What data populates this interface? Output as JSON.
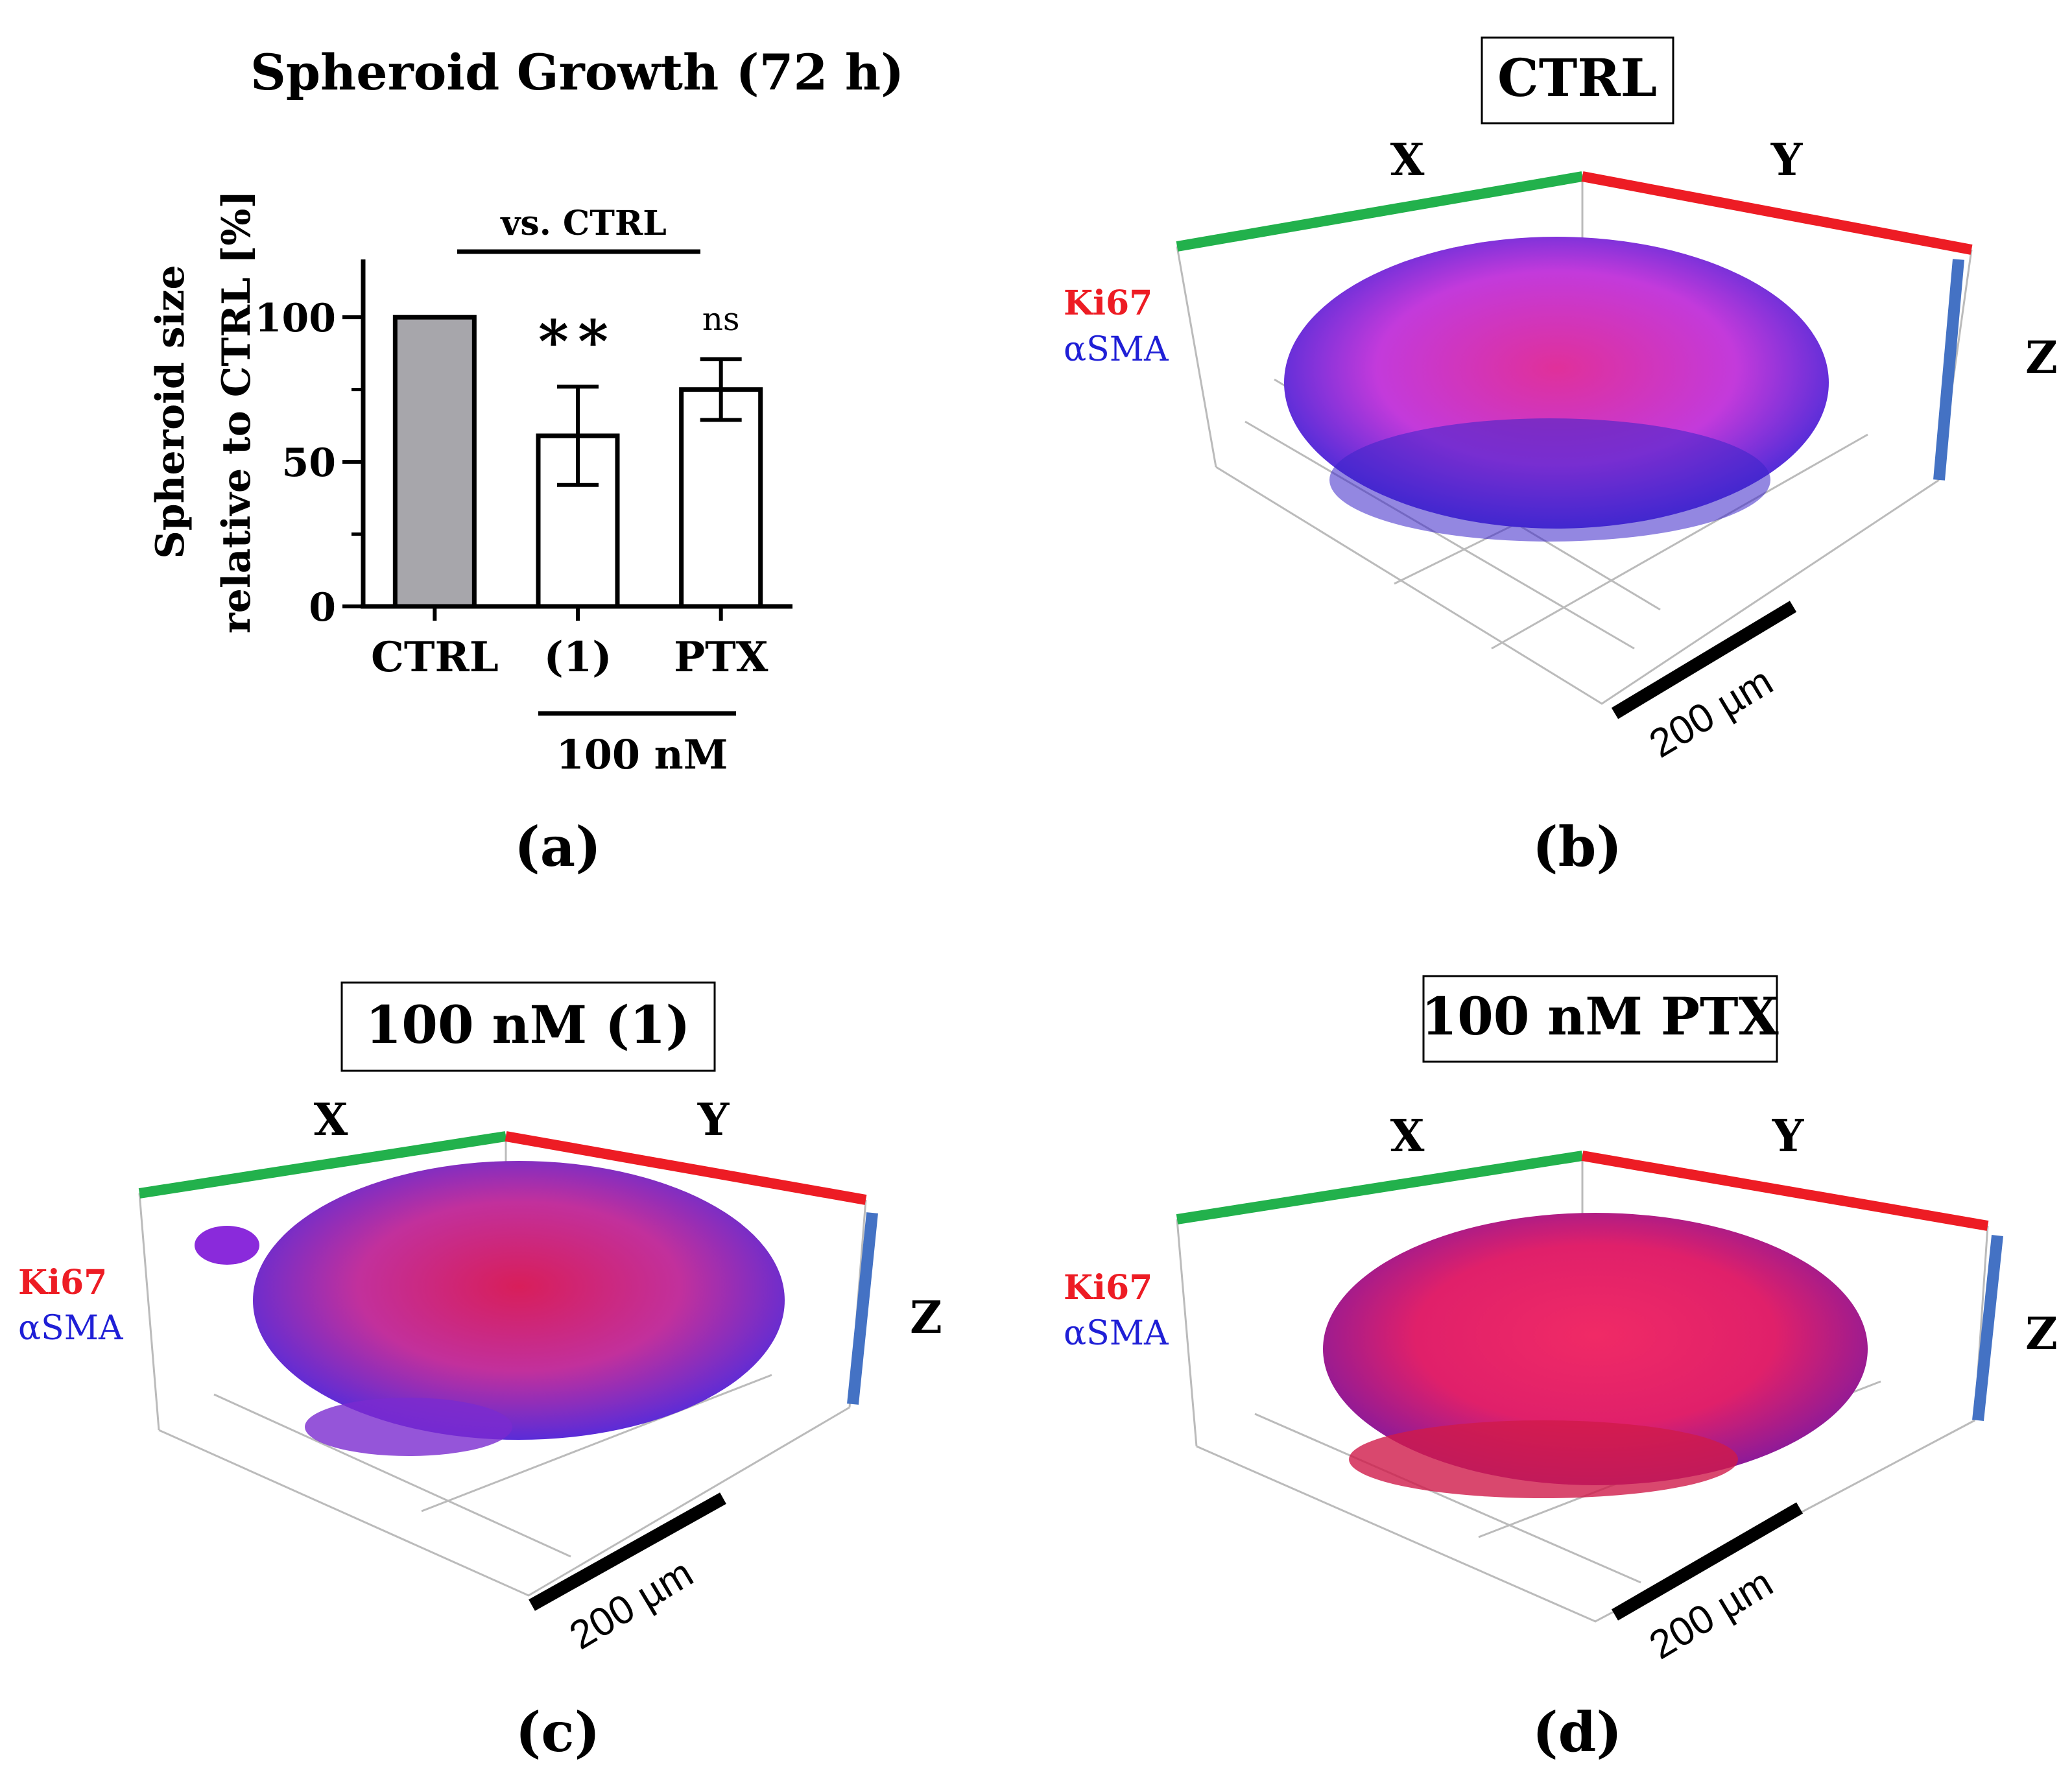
{
  "chart_data": {
    "type": "bar",
    "title": "Spheroid Growth (72 h)",
    "ylabel_line1": "Spheroid size",
    "ylabel_line2": "relative to CTRL [%]",
    "ylim": [
      0,
      120
    ],
    "yticks": [
      0,
      50,
      100
    ],
    "categories": [
      "CTRL",
      "(1)",
      "PTX"
    ],
    "values": [
      100,
      59,
      75
    ],
    "errors": [
      0,
      17,
      10.5
    ],
    "bar_colors": [
      "#a7a6ab",
      "#ffffff",
      "#ffffff"
    ],
    "significance": [
      "",
      "**",
      "ns"
    ],
    "comparison_label": "vs. CTRL",
    "concentration_label": "100 nM",
    "panel_label": "(a)"
  },
  "panels": [
    {
      "id": "b",
      "title": "CTRL",
      "label": "(b)",
      "axis_x": "X",
      "axis_y": "Y",
      "axis_z": "Z",
      "stain_1": "Ki67",
      "stain_2": "αSMA",
      "scale_bar": "200 µm",
      "blob_color": "#c83cd8"
    },
    {
      "id": "c",
      "title": "100 nM (1)",
      "label": "(c)",
      "axis_x": "X",
      "axis_y": "Y",
      "axis_z": "Z",
      "stain_1": "Ki67",
      "stain_2": "αSMA",
      "scale_bar": "200 µm",
      "blob_color": "#d0308e"
    },
    {
      "id": "d",
      "title": "100 nM PTX",
      "label": "(d)",
      "axis_x": "X",
      "axis_y": "Y",
      "axis_z": "Z",
      "stain_1": "Ki67",
      "stain_2": "αSMA",
      "scale_bar": "200 µm",
      "blob_color": "#e0205e"
    }
  ],
  "colors": {
    "x_axis": "#22b14c",
    "y_axis": "#ed1c24",
    "z_axis": "#4472c4",
    "ki67": "#ed1c24",
    "asma": "#1f1fd6"
  }
}
